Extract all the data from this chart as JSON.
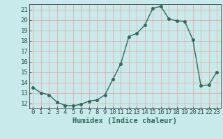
{
  "x": [
    0,
    1,
    2,
    3,
    4,
    5,
    6,
    7,
    8,
    9,
    10,
    11,
    12,
    13,
    14,
    15,
    16,
    17,
    18,
    19,
    20,
    21,
    22,
    23
  ],
  "y": [
    13.5,
    13.0,
    12.8,
    12.1,
    11.8,
    11.75,
    11.9,
    12.2,
    12.3,
    12.8,
    14.3,
    15.8,
    18.4,
    18.7,
    19.5,
    21.1,
    21.3,
    20.1,
    19.9,
    19.85,
    18.1,
    13.7,
    13.75,
    15.0
  ],
  "xlabel": "Humidex (Indice chaleur)",
  "xlim": [
    -0.5,
    23.5
  ],
  "ylim": [
    11.5,
    21.5
  ],
  "yticks": [
    12,
    13,
    14,
    15,
    16,
    17,
    18,
    19,
    20,
    21
  ],
  "xticks": [
    0,
    1,
    2,
    3,
    4,
    5,
    6,
    7,
    8,
    9,
    10,
    11,
    12,
    13,
    14,
    15,
    16,
    17,
    18,
    19,
    20,
    21,
    22,
    23
  ],
  "line_color": "#2e6b5e",
  "bg_color": "#c8eaea",
  "grid_color": "#e8a0a0",
  "marker": "o",
  "markersize": 2.5,
  "linewidth": 1.0,
  "xlabel_fontsize": 7.5,
  "tick_fontsize": 6.5
}
